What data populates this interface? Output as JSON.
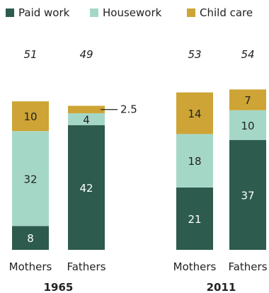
{
  "chart_data": {
    "type": "bar",
    "stacked": true,
    "title": "",
    "xlabel": "",
    "ylabel": "",
    "legend": {
      "placement": "top",
      "entries": [
        "Paid work",
        "Housework",
        "Child care"
      ]
    },
    "colors": {
      "Paid work": "#2d5b4e",
      "Housework": "#a5d7c7",
      "Child care": "#cda435"
    },
    "groups": [
      {
        "year": "1965",
        "bars": [
          {
            "category": "Mothers",
            "total": 51,
            "segments": {
              "Paid work": 8,
              "Housework": 32,
              "Child care": 10
            }
          },
          {
            "category": "Fathers",
            "total": 49,
            "segments": {
              "Paid work": 42,
              "Housework": 4,
              "Child care": 2.5
            }
          }
        ]
      },
      {
        "year": "2011",
        "bars": [
          {
            "category": "Mothers",
            "total": 53,
            "segments": {
              "Paid work": 21,
              "Housework": 18,
              "Child care": 14
            }
          },
          {
            "category": "Fathers",
            "total": 54,
            "segments": {
              "Paid work": 37,
              "Housework": 10,
              "Child care": 7
            }
          }
        ]
      }
    ],
    "callouts": [
      {
        "group": "1965",
        "category": "Fathers",
        "series": "Child care",
        "text": "2.5"
      }
    ]
  }
}
